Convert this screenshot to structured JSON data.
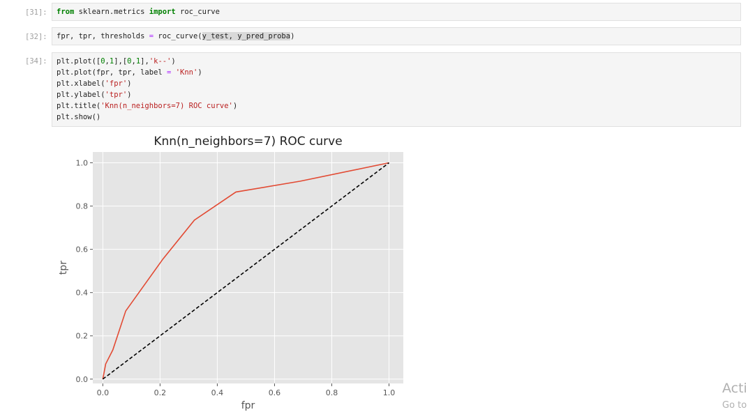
{
  "cells": [
    {
      "prompt": "[31]:",
      "lines": [
        [
          {
            "t": "from",
            "c": "kw"
          },
          {
            "t": " sklearn.metrics ",
            "c": ""
          },
          {
            "t": "import",
            "c": "kw"
          },
          {
            "t": " roc_curve",
            "c": ""
          }
        ]
      ]
    },
    {
      "prompt": "[32]:",
      "lines": [
        [
          {
            "t": "fpr, tpr, thresholds ",
            "c": ""
          },
          {
            "t": "=",
            "c": "op"
          },
          {
            "t": " roc_curve(",
            "c": ""
          },
          {
            "t": "y_test, y_pred_proba",
            "c": "hl"
          },
          {
            "t": ")",
            "c": ""
          }
        ]
      ]
    },
    {
      "prompt": "[34]:",
      "lines": [
        [
          {
            "t": "plt.plot([",
            "c": ""
          },
          {
            "t": "0",
            "c": "num"
          },
          {
            "t": ",",
            "c": ""
          },
          {
            "t": "1",
            "c": "num"
          },
          {
            "t": "],[",
            "c": ""
          },
          {
            "t": "0",
            "c": "num"
          },
          {
            "t": ",",
            "c": ""
          },
          {
            "t": "1",
            "c": "num"
          },
          {
            "t": "],",
            "c": ""
          },
          {
            "t": "'k--'",
            "c": "str"
          },
          {
            "t": ")",
            "c": ""
          }
        ],
        [
          {
            "t": "plt.plot(fpr, tpr, label ",
            "c": ""
          },
          {
            "t": "=",
            "c": "op"
          },
          {
            "t": " ",
            "c": ""
          },
          {
            "t": "'Knn'",
            "c": "str"
          },
          {
            "t": ")",
            "c": ""
          }
        ],
        [
          {
            "t": "plt.xlabel(",
            "c": ""
          },
          {
            "t": "'fpr'",
            "c": "str"
          },
          {
            "t": ")",
            "c": ""
          }
        ],
        [
          {
            "t": "plt.ylabel(",
            "c": ""
          },
          {
            "t": "'tpr'",
            "c": "str"
          },
          {
            "t": ")",
            "c": ""
          }
        ],
        [
          {
            "t": "plt.title(",
            "c": ""
          },
          {
            "t": "'Knn(n_neighbors=7) ROC curve'",
            "c": "str"
          },
          {
            "t": ")",
            "c": ""
          }
        ],
        [
          {
            "t": "plt.show()",
            "c": ""
          }
        ]
      ]
    }
  ],
  "chart_data": {
    "type": "line",
    "title": "Knn(n_neighbors=7) ROC curve",
    "xlabel": "fpr",
    "ylabel": "tpr",
    "xlim": [
      -0.035,
      1.05
    ],
    "ylim": [
      -0.02,
      1.05
    ],
    "xticks": [
      0.0,
      0.2,
      0.4,
      0.6,
      0.8,
      1.0
    ],
    "yticks": [
      0.0,
      0.2,
      0.4,
      0.6,
      0.8,
      1.0
    ],
    "xtick_labels": [
      "0.0",
      "0.2",
      "0.4",
      "0.6",
      "0.8",
      "1.0"
    ],
    "ytick_labels": [
      "0.0",
      "0.2",
      "0.4",
      "0.6",
      "0.8",
      "1.0"
    ],
    "grid": true,
    "background": "#e5e5e5",
    "series": [
      {
        "color": "#e24a33",
        "style": "solid",
        "x": [
          0.0,
          0.01,
          0.035,
          0.08,
          0.21,
          0.32,
          0.465,
          0.69,
          1.0
        ],
        "y": [
          0.0,
          0.07,
          0.135,
          0.315,
          0.555,
          0.735,
          0.865,
          0.915,
          1.0
        ]
      },
      {
        "color": "#000000",
        "style": "dashed",
        "x": [
          0,
          1
        ],
        "y": [
          0,
          1
        ]
      }
    ]
  },
  "watermark": {
    "line1": "Acti",
    "line2": "Go to"
  }
}
